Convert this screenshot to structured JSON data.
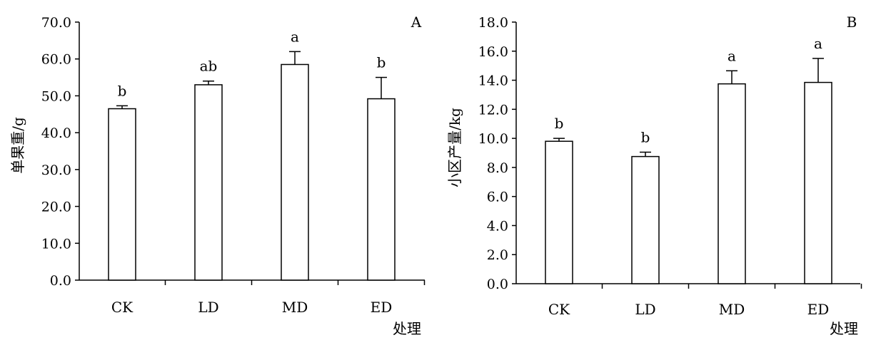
{
  "chart_data": [
    {
      "type": "bar",
      "panel_label": "A",
      "categories": [
        "CK",
        "LD",
        "MD",
        "ED"
      ],
      "values": [
        46.5,
        53.0,
        58.5,
        49.2
      ],
      "errors": [
        0.8,
        1.0,
        3.5,
        5.8
      ],
      "significance": [
        "b",
        "ab",
        "a",
        "b"
      ],
      "xlabel": "处理",
      "ylabel": "单果重/g",
      "ylim": [
        0,
        70
      ],
      "yticks": [
        0,
        10,
        20,
        30,
        40,
        50,
        60,
        70
      ],
      "ytick_labels": [
        "0.0",
        "10.0",
        "20.0",
        "30.0",
        "40.0",
        "50.0",
        "60.0",
        "70.0"
      ],
      "grid": false,
      "bar_color": "#ffffff",
      "edge_color": "#000000"
    },
    {
      "type": "bar",
      "panel_label": "B",
      "categories": [
        "CK",
        "LD",
        "MD",
        "ED"
      ],
      "values": [
        9.8,
        8.75,
        13.75,
        13.85
      ],
      "errors": [
        0.2,
        0.3,
        0.9,
        1.65
      ],
      "significance": [
        "b",
        "b",
        "a",
        "a"
      ],
      "xlabel": "处理",
      "ylabel": "小区产量/kg",
      "ylim": [
        0,
        18
      ],
      "yticks": [
        0,
        2,
        4,
        6,
        8,
        10,
        12,
        14,
        16,
        18
      ],
      "ytick_labels": [
        "0.0",
        "2.0",
        "4.0",
        "6.0",
        "8.0",
        "10.0",
        "12.0",
        "14.0",
        "16.0",
        "18.0"
      ],
      "grid": false,
      "bar_color": "#ffffff",
      "edge_color": "#000000"
    }
  ]
}
